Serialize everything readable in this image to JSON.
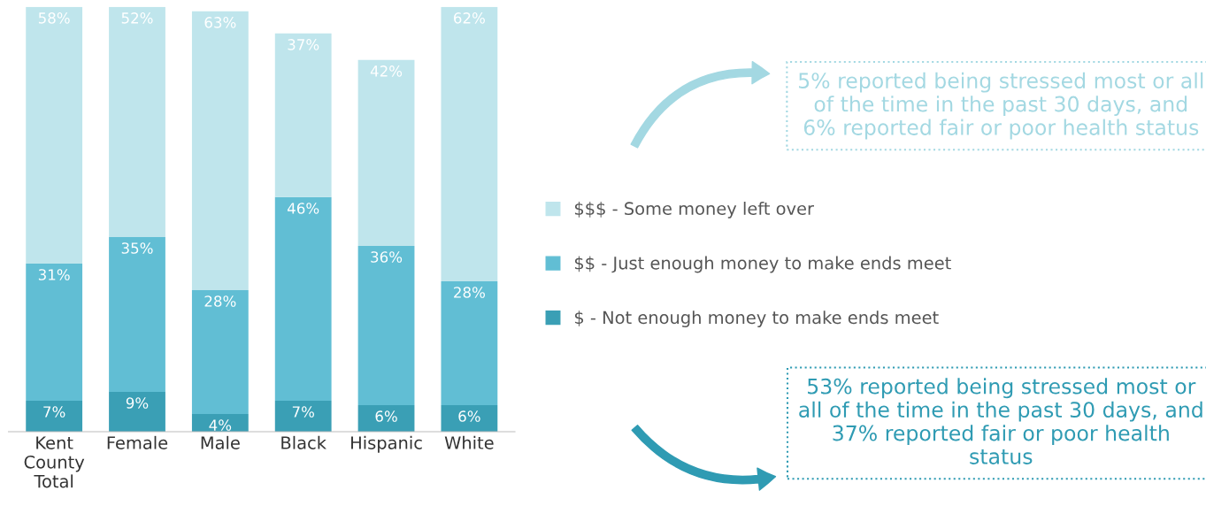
{
  "chart_data": {
    "type": "bar",
    "stacked": true,
    "legend": "right",
    "grid": false,
    "categories": [
      "Kent County Total",
      "Female",
      "Male",
      "Black",
      "Hispanic",
      "White"
    ],
    "series": [
      {
        "name": "$ - Not enough money to make ends meet",
        "color": "#3a9fb5",
        "values": [
          7,
          9,
          4,
          7,
          6,
          6
        ],
        "value_labels": [
          "7%",
          "9%",
          "4%",
          "7%",
          "6%",
          "6%"
        ]
      },
      {
        "name": "$$ - Just enough money to make ends meet",
        "color": "#61bed4",
        "values": [
          31,
          35,
          28,
          46,
          36,
          28
        ],
        "value_labels": [
          "31%",
          "35%",
          "28%",
          "46%",
          "36%",
          "28%"
        ]
      },
      {
        "name": "$$$ - Some money left over",
        "color": "#bfe5ec",
        "values": [
          58,
          52,
          63,
          37,
          42,
          62
        ],
        "value_labels": [
          "58%",
          "52%",
          "63%",
          "37%",
          "42%",
          "62%"
        ]
      }
    ],
    "annotations": [
      "5% reported being stressed most or all of the time in the past 30 days, and 6% reported fair or poor health status",
      "53% reported being stressed most or all of the time in the past 30 days, and 37% reported fair or poor health status"
    ]
  }
}
